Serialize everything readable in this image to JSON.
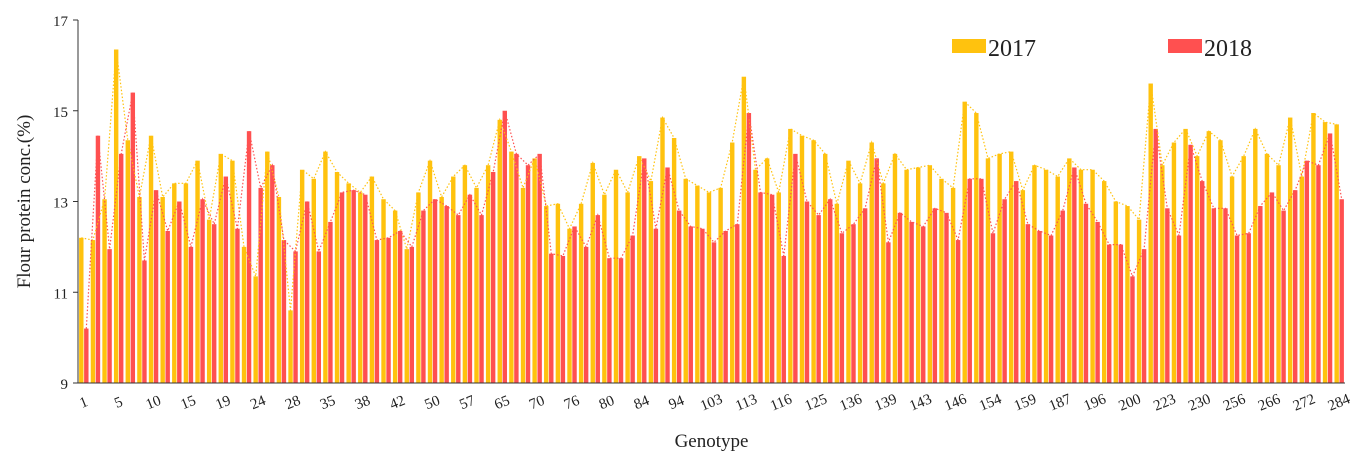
{
  "chart_data": {
    "type": "bar",
    "y_label": "Flour protein conc.(%)",
    "x_label": "Genotype",
    "categories": [
      "1",
      null,
      null,
      "5",
      null,
      null,
      "10",
      null,
      null,
      "15",
      null,
      null,
      "19",
      null,
      null,
      "24",
      null,
      null,
      "28",
      null,
      null,
      "35",
      null,
      null,
      "38",
      null,
      null,
      "42",
      null,
      null,
      "50",
      null,
      null,
      "57",
      null,
      null,
      "65",
      null,
      null,
      "70",
      null,
      null,
      "76",
      null,
      null,
      "80",
      null,
      null,
      "84",
      null,
      null,
      "94",
      null,
      null,
      "103",
      null,
      null,
      "113",
      null,
      null,
      "116",
      null,
      null,
      "125",
      null,
      null,
      "136",
      null,
      null,
      "139",
      null,
      null,
      "143",
      null,
      null,
      "146",
      null,
      null,
      "154",
      null,
      null,
      "159",
      null,
      null,
      "187",
      null,
      null,
      "196",
      null,
      null,
      "200",
      null,
      null,
      "223",
      null,
      null,
      "230",
      null,
      null,
      "256",
      null,
      null,
      "266",
      null,
      null,
      "272",
      null,
      null,
      "284"
    ],
    "series": [
      {
        "name": "2017",
        "color": "#ffc20e",
        "values": [
          12.2,
          12.15,
          13.05,
          16.35,
          14.35,
          13.1,
          14.45,
          13.1,
          13.4,
          13.4,
          13.9,
          12.6,
          14.05,
          13.9,
          12.0,
          11.35,
          14.1,
          13.1,
          10.6,
          13.7,
          13.5,
          14.1,
          13.65,
          13.4,
          13.2,
          13.55,
          13.05,
          12.8,
          11.95,
          13.2,
          13.9,
          13.1,
          13.55,
          13.8,
          13.3,
          13.8,
          14.8,
          14.1,
          13.3,
          13.95,
          12.9,
          12.95,
          12.4,
          12.95,
          13.85,
          13.15,
          13.7,
          13.2,
          14.0,
          13.45,
          14.85,
          14.4,
          13.5,
          13.35,
          13.2,
          13.3,
          14.3,
          15.75,
          13.7,
          13.95,
          13.2,
          14.6,
          14.45,
          14.35,
          14.05,
          12.95,
          13.9,
          13.4,
          14.3,
          13.4,
          14.05,
          13.7,
          13.75,
          13.8,
          13.5,
          13.3,
          15.2,
          14.95,
          13.95,
          14.05,
          14.1,
          13.25,
          13.8,
          13.7,
          13.55,
          13.95,
          13.7,
          13.7,
          13.45,
          13.0,
          12.9,
          12.6,
          15.6,
          13.8,
          14.3,
          14.6,
          14.0,
          14.55,
          14.35,
          13.55,
          14.0,
          14.6,
          14.05,
          13.8,
          14.85,
          13.55,
          14.95,
          14.75,
          14.7
        ]
      },
      {
        "name": "2018",
        "color": "#ff5050",
        "values": [
          10.2,
          14.45,
          11.95,
          14.05,
          15.4,
          11.7,
          13.25,
          12.35,
          13.0,
          12.0,
          13.05,
          12.5,
          13.55,
          12.4,
          14.55,
          13.3,
          13.8,
          12.15,
          11.9,
          13.0,
          11.9,
          12.55,
          13.2,
          13.25,
          13.15,
          12.15,
          12.2,
          12.35,
          12.0,
          12.8,
          13.05,
          12.9,
          12.7,
          13.15,
          12.7,
          13.65,
          15.0,
          14.05,
          13.8,
          14.05,
          11.85,
          11.8,
          12.45,
          12.0,
          12.7,
          11.75,
          11.75,
          12.25,
          13.95,
          12.4,
          13.75,
          12.8,
          12.45,
          12.4,
          12.1,
          12.35,
          12.5,
          14.95,
          13.2,
          13.15,
          11.8,
          14.05,
          13.0,
          12.7,
          13.05,
          12.3,
          12.5,
          12.85,
          13.95,
          12.1,
          12.75,
          12.55,
          12.45,
          12.85,
          12.75,
          12.15,
          13.5,
          13.5,
          12.3,
          13.05,
          13.45,
          12.5,
          12.35,
          12.25,
          12.8,
          13.75,
          12.95,
          12.55,
          12.05,
          12.05,
          11.35,
          11.95,
          14.6,
          12.85,
          12.25,
          14.25,
          13.45,
          12.85,
          12.85,
          12.25,
          12.3,
          12.9,
          13.2,
          12.8,
          13.25,
          13.9,
          13.8,
          14.5,
          13.05
        ]
      }
    ],
    "ylim": [
      9,
      17
    ],
    "yticks": [
      9,
      11,
      13,
      15,
      17
    ]
  }
}
